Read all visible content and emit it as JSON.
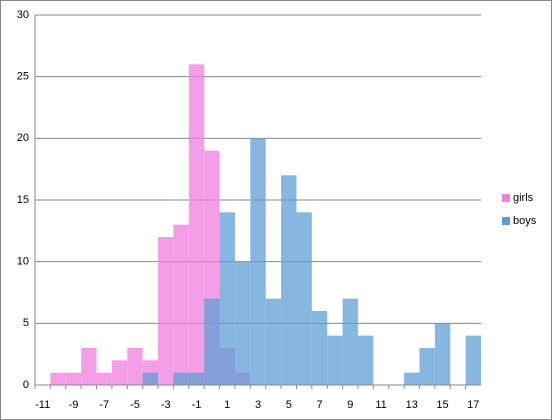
{
  "chart_data": {
    "type": "bar",
    "overlap": true,
    "categories": [
      "-11",
      null,
      "-9",
      null,
      "-7",
      null,
      "-5",
      null,
      "-3",
      null,
      "-1",
      null,
      "1",
      null,
      "3",
      null,
      "5",
      null,
      "7",
      null,
      "9",
      null,
      "11",
      null,
      "13",
      null,
      "15",
      null,
      "17"
    ],
    "series": [
      {
        "name": "girls",
        "color": "#f07ee0",
        "values": [
          0,
          1,
          1,
          3,
          1,
          2,
          3,
          2,
          12,
          13,
          26,
          19,
          3,
          1,
          0,
          0,
          0,
          0,
          0,
          0,
          0,
          0,
          0,
          0,
          0,
          0,
          0,
          0,
          0
        ]
      },
      {
        "name": "boys",
        "color": "#5c9fd6",
        "values": [
          0,
          0,
          0,
          0,
          0,
          0,
          0,
          1,
          0,
          1,
          1,
          7,
          14,
          10,
          20,
          7,
          17,
          14,
          6,
          4,
          7,
          4,
          0,
          0,
          1,
          3,
          5,
          0,
          4
        ]
      }
    ],
    "ylim": [
      0,
      30
    ],
    "yticks": [
      0,
      5,
      10,
      15,
      20,
      25,
      30
    ],
    "grid": true,
    "legend": "right"
  }
}
